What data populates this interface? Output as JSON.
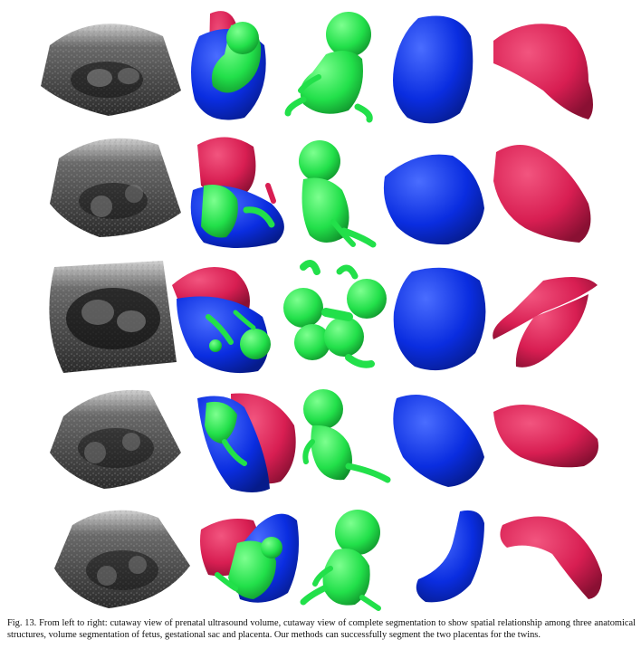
{
  "figure": {
    "caption_label": "Fig. 13.",
    "caption_text": "From left to right: cutaway view of prenatal ultrasound volume, cutaway view of complete segmentation to show spatial relationship among three anatomical structures, volume segmentation of fetus, gestational sac and placenta. Our methods can successfully segment the two placentas for the twins.",
    "colors": {
      "fetus": "#22e04a",
      "sac": "#0a2de0",
      "placenta": "#d81e52",
      "ultrasound_dark": "#1a1a1a",
      "ultrasound_light": "#bdbdbd"
    },
    "rows": 5,
    "columns": [
      "ultrasound-cutaway",
      "complete-segmentation",
      "fetus",
      "gestational-sac",
      "placenta"
    ]
  }
}
